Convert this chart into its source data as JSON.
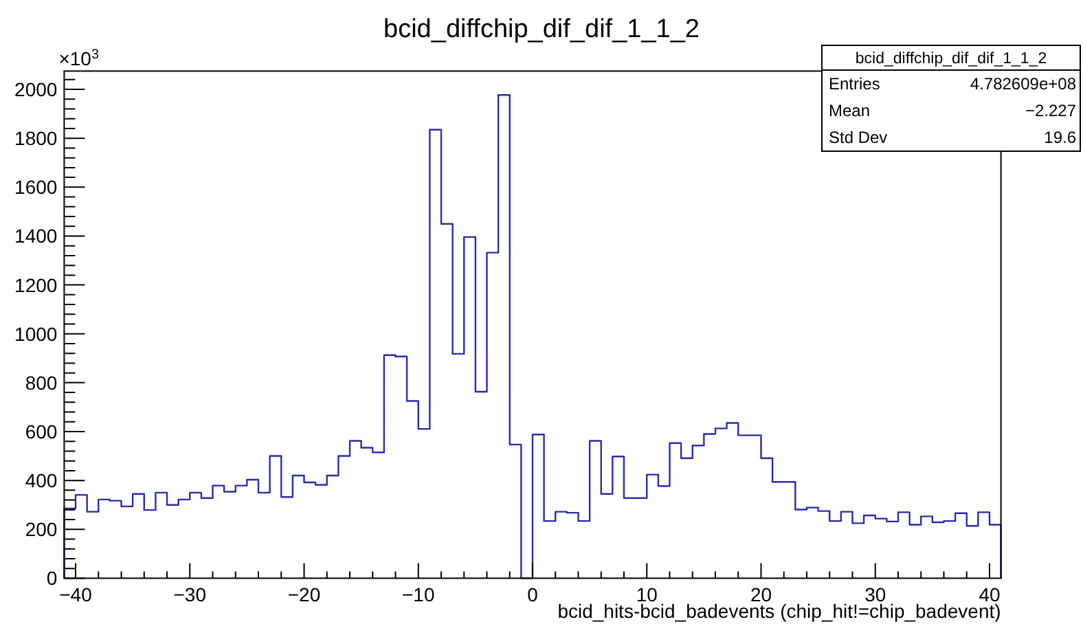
{
  "chart_data": {
    "type": "histogram",
    "title": "bcid_diffchip_dif_dif_1_1_2",
    "xlabel": "bcid_hits-bcid_badevents (chip_hit!=chip_badevent)",
    "bins": [
      -41,
      -40,
      -39,
      -38,
      -37,
      -36,
      -35,
      -34,
      -33,
      -32,
      -31,
      -30,
      -29,
      -28,
      -27,
      -26,
      -25,
      -24,
      -23,
      -22,
      -21,
      -20,
      -19,
      -18,
      -17,
      -16,
      -15,
      -14,
      -13,
      -12,
      -11,
      -10,
      -9,
      -8,
      -7,
      -6,
      -5,
      -4,
      -3,
      -2,
      -1,
      0,
      1,
      2,
      3,
      4,
      5,
      6,
      7,
      8,
      9,
      10,
      11,
      12,
      13,
      14,
      15,
      16,
      17,
      18,
      19,
      20,
      21,
      22,
      23,
      24,
      25,
      26,
      27,
      28,
      29,
      30,
      31,
      32,
      33,
      34,
      35,
      36,
      37,
      38,
      39,
      40,
      41
    ],
    "values": [
      285,
      341,
      272,
      322,
      317,
      294,
      345,
      279,
      350,
      300,
      322,
      350,
      328,
      379,
      354,
      379,
      403,
      350,
      500,
      332,
      420,
      392,
      382,
      420,
      500,
      562,
      534,
      515,
      913,
      907,
      725,
      611,
      1835,
      1450,
      918,
      1396,
      763,
      1332,
      1977,
      547,
      0,
      588,
      234,
      272,
      268,
      234,
      562,
      345,
      498,
      328,
      328,
      424,
      377,
      553,
      491,
      543,
      590,
      613,
      635,
      585,
      585,
      491,
      394,
      394,
      281,
      289,
      275,
      234,
      272,
      225,
      257,
      244,
      232,
      270,
      219,
      253,
      229,
      234,
      266,
      214,
      270,
      219
    ],
    "color": "#2a2ab0",
    "xlim": [
      -41,
      41
    ],
    "xticks": [
      -40,
      -30,
      -20,
      -10,
      0,
      10,
      20,
      30,
      40
    ],
    "ylim": [
      0,
      2075
    ],
    "yticks": [
      0,
      200,
      400,
      600,
      800,
      1000,
      1200,
      1400,
      1600,
      1800,
      2000
    ],
    "grid": false,
    "annotations": [
      "×10$^{3}$",
      "bcid_diffchip_dif_dif_1_1_2",
      "Entries",
      "4.782609e+08",
      "Mean",
      "−2.227",
      "Std Dev",
      "19.6"
    ]
  }
}
